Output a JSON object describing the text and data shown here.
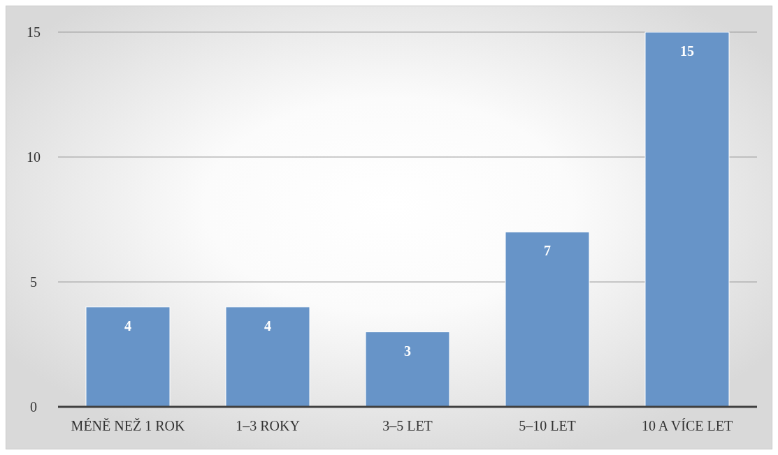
{
  "chart_data": {
    "type": "bar",
    "categories": [
      "MÉNĚ NEŽ 1 ROK",
      "1–3 ROKY",
      "3–5 LET",
      "5–10 LET",
      "10 A VÍCE LET"
    ],
    "values": [
      4,
      4,
      3,
      7,
      15
    ],
    "color": "#6794c8",
    "ylim": [
      0,
      15
    ],
    "yticks": [
      0,
      5,
      10,
      15
    ],
    "grid": "y",
    "data_labels": true
  }
}
